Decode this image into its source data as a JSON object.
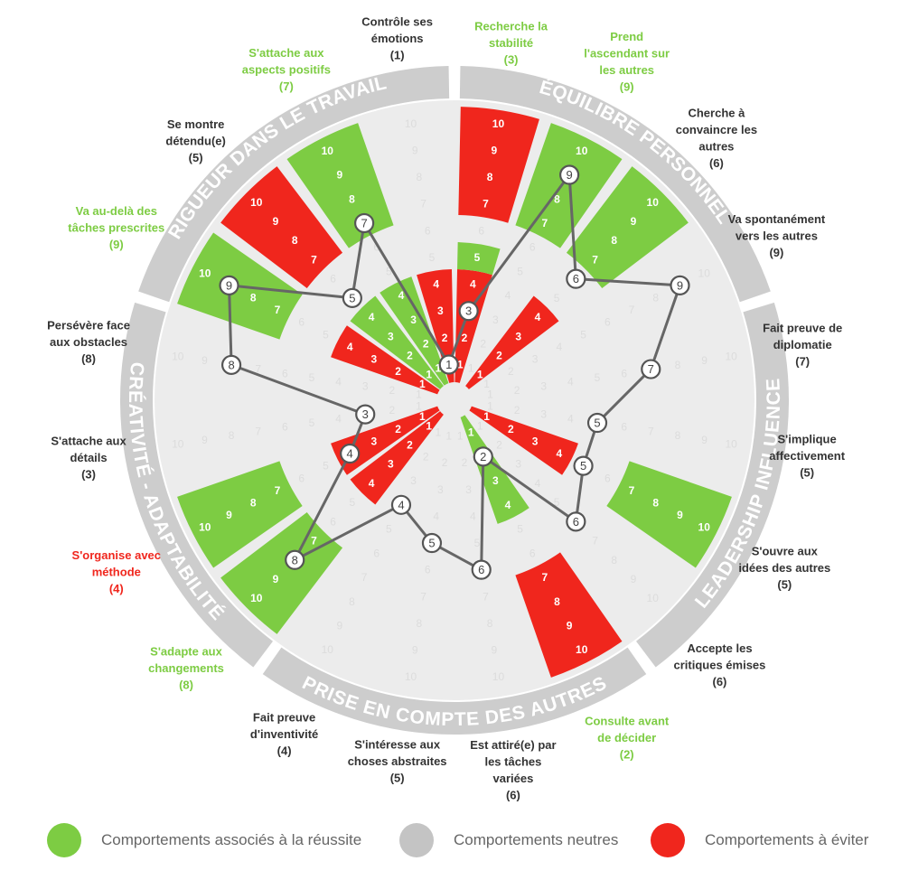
{
  "colors": {
    "success": "#7dcc43",
    "neutral": "#c4c4c4",
    "avoid": "#f0261d",
    "ring": "#cdcdcd",
    "base": "#ececec",
    "path": "#666666"
  },
  "categories": [
    {
      "id": "equilibre",
      "title": "ÉQUILIBRE PERSONNEL"
    },
    {
      "id": "leadership",
      "title": "LEADERSHIP INFLUENCE"
    },
    {
      "id": "prise",
      "title": "PRISE EN COMPTE DES AUTRES"
    },
    {
      "id": "creativite",
      "title": "CRÉATIVITÉ - ADAPTABILITÉ"
    },
    {
      "id": "rigueur",
      "title": "RIGUEUR DANS LE TRAVAIL"
    }
  ],
  "chart_data": {
    "type": "radar",
    "scale": [
      1,
      10
    ],
    "axes": [
      {
        "label": "Recherche la stabilité",
        "score": "(3)",
        "value": 3,
        "label_status": "success",
        "bands": [
          "avoid",
          "success",
          "neutral",
          "avoid"
        ]
      },
      {
        "label": "Prend l'ascendant sur les autres",
        "score": "(9)",
        "value": 9,
        "label_status": "success",
        "bands": [
          "neutral",
          "neutral",
          "neutral",
          "success"
        ]
      },
      {
        "label": "Cherche à convaincre les autres",
        "score": "(6)",
        "value": 6,
        "label_status": "neutral",
        "bands": [
          "avoid",
          "neutral",
          "neutral",
          "success"
        ]
      },
      {
        "label": "Va spontanément vers les autres",
        "score": "(9)",
        "value": 9,
        "label_status": "neutral",
        "bands": [
          "neutral",
          "neutral",
          "neutral",
          "neutral"
        ]
      },
      {
        "label": "Fait preuve de diplomatie",
        "score": "(7)",
        "value": 7,
        "label_status": "neutral",
        "bands": [
          "neutral",
          "neutral",
          "neutral",
          "neutral"
        ]
      },
      {
        "label": "S'implique affectivement",
        "score": "(5)",
        "value": 5,
        "label_status": "neutral",
        "bands": [
          "neutral",
          "neutral",
          "neutral",
          "neutral"
        ]
      },
      {
        "label": "S'ouvre aux idées des autres",
        "score": "(5)",
        "value": 5,
        "label_status": "neutral",
        "bands": [
          "avoid",
          "neutral",
          "neutral",
          "success"
        ]
      },
      {
        "label": "Accepte les critiques émises",
        "score": "(6)",
        "value": 6,
        "label_status": "neutral",
        "bands": [
          "neutral",
          "neutral",
          "neutral",
          "neutral"
        ]
      },
      {
        "label": "Consulte avant de décider",
        "score": "(2)",
        "value": 2,
        "label_status": "success",
        "bands": [
          "success",
          "neutral",
          "neutral",
          "avoid"
        ]
      },
      {
        "label": "Est attiré(e) par les tâches variées",
        "score": "(6)",
        "value": 6,
        "label_status": "neutral",
        "bands": [
          "neutral",
          "neutral",
          "neutral",
          "neutral"
        ]
      },
      {
        "label": "S'intéresse aux choses abstraites",
        "score": "(5)",
        "value": 5,
        "label_status": "neutral",
        "bands": [
          "neutral",
          "neutral",
          "neutral",
          "neutral"
        ]
      },
      {
        "label": "Fait preuve d'inventivité",
        "score": "(4)",
        "value": 4,
        "label_status": "neutral",
        "bands": [
          "neutral",
          "neutral",
          "neutral",
          "neutral"
        ]
      },
      {
        "label": "S'adapte aux changements",
        "score": "(8)",
        "value": 8,
        "label_status": "success",
        "bands": [
          "avoid",
          "neutral",
          "neutral",
          "success"
        ]
      },
      {
        "label": "S'organise avec méthode",
        "score": "(4)",
        "value": 4,
        "label_status": "avoid",
        "bands": [
          "avoid",
          "neutral",
          "neutral",
          "success"
        ]
      },
      {
        "label": "S'attache aux détails",
        "score": "(3)",
        "value": 3,
        "label_status": "neutral",
        "bands": [
          "neutral",
          "neutral",
          "neutral",
          "neutral"
        ]
      },
      {
        "label": "Persévère face aux obstacles",
        "score": "(8)",
        "value": 8,
        "label_status": "neutral",
        "bands": [
          "neutral",
          "neutral",
          "neutral",
          "neutral"
        ]
      },
      {
        "label": "Va au-delà des tâches prescrites",
        "score": "(9)",
        "value": 9,
        "label_status": "success",
        "bands": [
          "avoid",
          "neutral",
          "neutral",
          "success"
        ]
      },
      {
        "label": "Se montre détendu(e)",
        "score": "(5)",
        "value": 5,
        "label_status": "neutral",
        "bands": [
          "success",
          "neutral",
          "neutral",
          "avoid"
        ]
      },
      {
        "label": "S'attache aux aspects positifs",
        "score": "(7)",
        "value": 7,
        "label_status": "success",
        "bands": [
          "success",
          "neutral",
          "neutral",
          "success"
        ]
      },
      {
        "label": "Contrôle ses émotions",
        "score": "(1)",
        "value": 1,
        "label_status": "neutral",
        "bands": [
          "avoid",
          "neutral",
          "neutral",
          "neutral"
        ]
      }
    ]
  },
  "legend": [
    {
      "label": "Comportements associés à la réussite",
      "color": "#7dcc43"
    },
    {
      "label": "Comportements neutres",
      "color": "#c4c4c4"
    },
    {
      "label": "Comportements à éviter",
      "color": "#f0261d"
    }
  ]
}
